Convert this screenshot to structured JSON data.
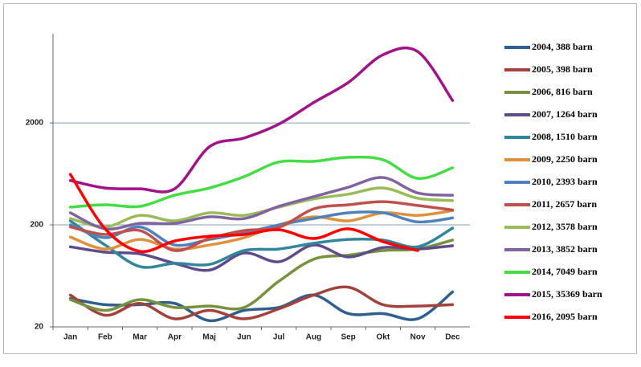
{
  "chart_data": {
    "type": "line",
    "log_scale": true,
    "grid": true,
    "legend": "right",
    "categories": [
      "Jan",
      "Feb",
      "Mar",
      "Apr",
      "Maj",
      "Jun",
      "Jul",
      "Aug",
      "Sep",
      "Okt",
      "Nov",
      "Dec"
    ],
    "ylim": [
      20,
      15000
    ],
    "yticks": [
      20,
      200,
      2000
    ],
    "series": [
      {
        "name": "2004, 388 barn",
        "color": "#2f5f8f",
        "values": [
          38,
          33,
          33,
          34,
          23,
          29,
          31,
          41,
          27,
          27,
          24,
          44
        ]
      },
      {
        "name": "2005, 398 barn",
        "color": "#a3423c",
        "values": [
          41,
          26,
          34,
          24,
          29,
          24,
          30,
          41,
          49,
          33,
          32,
          33
        ]
      },
      {
        "name": "2006, 816 barn",
        "color": "#76923c",
        "values": [
          37,
          29,
          37,
          31,
          32,
          31,
          56,
          92,
          101,
          112,
          116,
          142
        ]
      },
      {
        "name": "2007, 1264 barn",
        "color": "#5f4a8b",
        "values": [
          122,
          108,
          104,
          84,
          72,
          106,
          87,
          127,
          97,
          120,
          116,
          125
        ]
      },
      {
        "name": "2008, 1510 barn",
        "color": "#31859c",
        "values": [
          219,
          127,
          78,
          84,
          82,
          112,
          116,
          132,
          144,
          142,
          122,
          186
        ]
      },
      {
        "name": "2009, 2250 barn",
        "color": "#e0913e",
        "values": [
          152,
          116,
          144,
          116,
          127,
          150,
          200,
          240,
          219,
          263,
          248,
          276
        ]
      },
      {
        "name": "2010, 2393 barn",
        "color": "#4f81bd",
        "values": [
          200,
          150,
          191,
          127,
          144,
          167,
          200,
          231,
          263,
          263,
          214,
          234
        ]
      },
      {
        "name": "2011, 2657 barn",
        "color": "#c0504d",
        "values": [
          191,
          161,
          176,
          112,
          147,
          176,
          189,
          287,
          315,
          338,
          310,
          280
        ]
      },
      {
        "name": "2012, 3578 barn",
        "color": "#9bbb59",
        "values": [
          231,
          191,
          248,
          219,
          263,
          248,
          299,
          359,
          400,
          460,
          365,
          346
        ]
      },
      {
        "name": "2013, 3852 barn",
        "color": "#8064a2",
        "values": [
          263,
          183,
          207,
          207,
          240,
          231,
          304,
          378,
          468,
          583,
          411,
          391
        ]
      },
      {
        "name": "2014, 7049 barn",
        "color": "#44dd44",
        "values": [
          299,
          315,
          304,
          391,
          460,
          594,
          828,
          840,
          920,
          870,
          572,
          726
        ]
      },
      {
        "name": "2015, 35369 barn",
        "color": "#a0138a",
        "values": [
          545,
          460,
          452,
          452,
          1166,
          1423,
          1947,
          3165,
          4990,
          9330,
          10010,
          3323
        ]
      },
      {
        "name": "2016, 2095 barn",
        "color": "#ff0000",
        "values": [
          626,
          183,
          110,
          139,
          155,
          161,
          179,
          147,
          183,
          137,
          112,
          null
        ]
      }
    ]
  }
}
